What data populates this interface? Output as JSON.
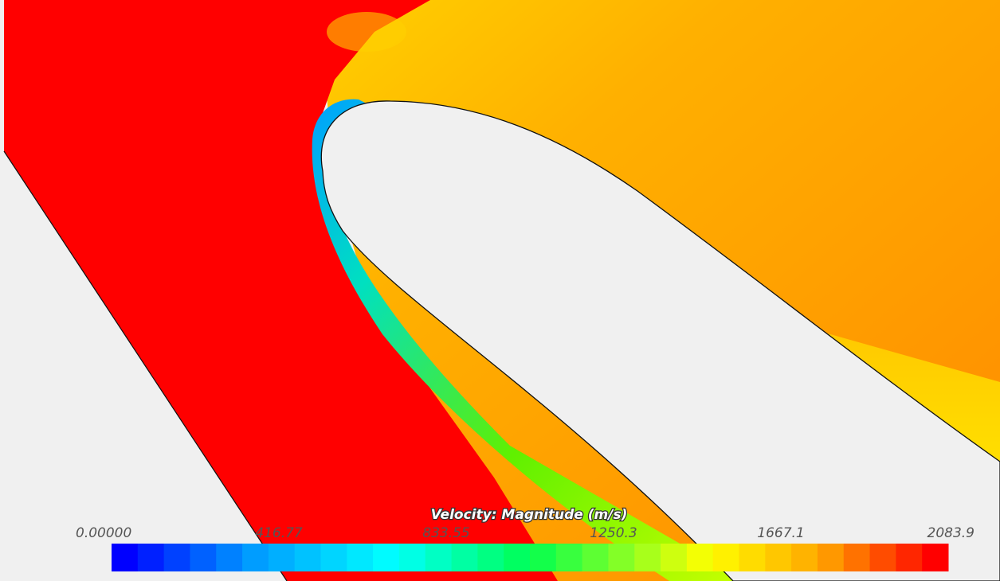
{
  "colorbar": {
    "title": "Velocity: Magnitude (m/s)",
    "ticks": [
      "0.00000",
      "416.77",
      "833.55",
      "1250.3",
      "1667.1",
      "2083.9"
    ]
  }
}
